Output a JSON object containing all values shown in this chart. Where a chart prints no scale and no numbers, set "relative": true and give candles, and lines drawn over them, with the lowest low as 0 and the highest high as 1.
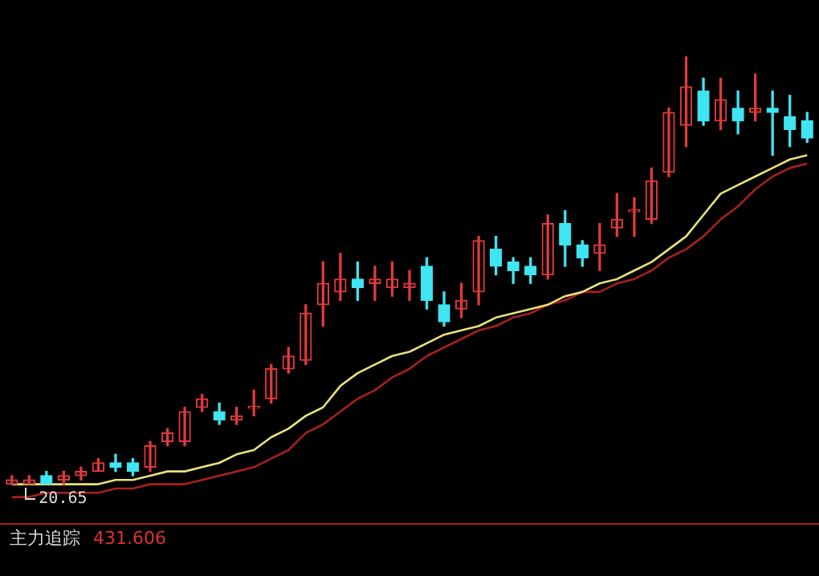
{
  "chart_data": {
    "type": "candlestick",
    "relative": true,
    "legend": false,
    "categories": [
      null,
      null,
      null,
      null,
      null,
      null,
      null,
      null,
      null,
      null,
      null,
      null,
      null,
      null,
      null,
      null,
      null,
      null,
      null,
      null,
      null,
      null,
      null,
      null,
      null,
      null,
      null,
      null,
      null,
      null,
      null,
      null,
      null,
      null,
      null,
      null,
      null,
      null,
      null,
      null,
      null,
      null,
      null,
      null,
      null,
      null,
      null
    ],
    "ohlc": [
      [
        0.0,
        0.02,
        0,
        0.01
      ],
      [
        0.0,
        0.02,
        0.0,
        0.01
      ],
      [
        0.02,
        0.03,
        0.0,
        0.0
      ],
      [
        0.01,
        0.03,
        0,
        0.02
      ],
      [
        0.02,
        0.04,
        0.01,
        0.03
      ],
      [
        0.03,
        0.06,
        0.03,
        0.05
      ],
      [
        0.05,
        0.07,
        0.03,
        0.04
      ],
      [
        0.05,
        0.06,
        0.02,
        0.03
      ],
      [
        0.04,
        0.1,
        0.03,
        0.09
      ],
      [
        0.1,
        0.13,
        0.09,
        0.12
      ],
      [
        0.1,
        0.18,
        0.09,
        0.17
      ],
      [
        0.18,
        0.21,
        0.17,
        0.2
      ],
      [
        0.17,
        0.19,
        0.14,
        0.15
      ],
      [
        0.15,
        0.18,
        0.14,
        0.16
      ],
      [
        0.18,
        0.22,
        0.16,
        0.18
      ],
      [
        0.2,
        0.28,
        0.19,
        0.27
      ],
      [
        0.27,
        0.32,
        0.26,
        0.3
      ],
      [
        0.29,
        0.42,
        0.28,
        0.4
      ],
      [
        0.42,
        0.52,
        0.37,
        0.47
      ],
      [
        0.45,
        0.54,
        0.43,
        0.48
      ],
      [
        0.48,
        0.52,
        0.43,
        0.46
      ],
      [
        0.47,
        0.51,
        0.43,
        0.48
      ],
      [
        0.46,
        0.52,
        0.44,
        0.48
      ],
      [
        0.46,
        0.5,
        0.43,
        0.47
      ],
      [
        0.51,
        0.53,
        0.41,
        0.43
      ],
      [
        0.42,
        0.45,
        0.37,
        0.38
      ],
      [
        0.41,
        0.47,
        0.39,
        0.43
      ],
      [
        0.45,
        0.58,
        0.42,
        0.57
      ],
      [
        0.55,
        0.58,
        0.49,
        0.51
      ],
      [
        0.52,
        0.53,
        0.47,
        0.5
      ],
      [
        0.51,
        0.53,
        0.47,
        0.49
      ],
      [
        0.49,
        0.63,
        0.48,
        0.61
      ],
      [
        0.61,
        0.64,
        0.51,
        0.56
      ],
      [
        0.56,
        0.57,
        0.51,
        0.53
      ],
      [
        0.54,
        0.61,
        0.5,
        0.56
      ],
      [
        0.6,
        0.68,
        0.58,
        0.62
      ],
      [
        0.64,
        0.67,
        0.58,
        0.64
      ],
      [
        0.62,
        0.74,
        0.61,
        0.71
      ],
      [
        0.73,
        0.88,
        0.72,
        0.87
      ],
      [
        0.84,
        1,
        0.79,
        0.93
      ],
      [
        0.92,
        0.95,
        0.84,
        0.85
      ],
      [
        0.85,
        0.95,
        0.83,
        0.9
      ],
      [
        0.88,
        0.92,
        0.82,
        0.85
      ],
      [
        0.87,
        0.96,
        0.85,
        0.88
      ],
      [
        0.88,
        0.92,
        0.77,
        0.87
      ],
      [
        0.86,
        0.91,
        0.79,
        0.83
      ],
      [
        0.85,
        0.87,
        0.8,
        0.81
      ]
    ],
    "series": [
      {
        "type": "line",
        "color": "#e8e27a",
        "values": [
          0,
          0,
          0,
          0,
          0,
          0,
          0.01,
          0.01,
          0.02,
          0.03,
          0.03,
          0.04,
          0.05,
          0.07,
          0.08,
          0.11,
          0.13,
          0.16,
          0.18,
          0.23,
          0.26,
          0.28,
          0.3,
          0.31,
          0.33,
          0.35,
          0.36,
          0.37,
          0.39,
          0.4,
          0.41,
          0.42,
          0.44,
          0.45,
          0.47,
          0.48,
          0.5,
          0.52,
          0.55,
          0.58,
          0.63,
          0.68,
          0.7,
          0.72,
          0.74,
          0.76,
          0.77
        ]
      },
      {
        "type": "line",
        "color": "#a82020",
        "values": [
          -0.03,
          -0.03,
          -0.02,
          -0.02,
          -0.02,
          -0.02,
          -0.01,
          -0.01,
          0,
          0,
          0,
          0.01,
          0.02,
          0.03,
          0.04,
          0.06,
          0.08,
          0.12,
          0.14,
          0.17,
          0.2,
          0.22,
          0.25,
          0.27,
          0.3,
          0.32,
          0.34,
          0.36,
          0.37,
          0.39,
          0.4,
          0.42,
          0.43,
          0.45,
          0.45,
          0.47,
          0.48,
          0.5,
          0.53,
          0.55,
          0.58,
          0.62,
          0.65,
          0.69,
          0.72,
          0.74,
          0.75
        ]
      }
    ],
    "marker": "none",
    "annotations": [
      {
        "text": "20.65",
        "y": 0
      },
      "主力追踪",
      "431.606"
    ]
  }
}
